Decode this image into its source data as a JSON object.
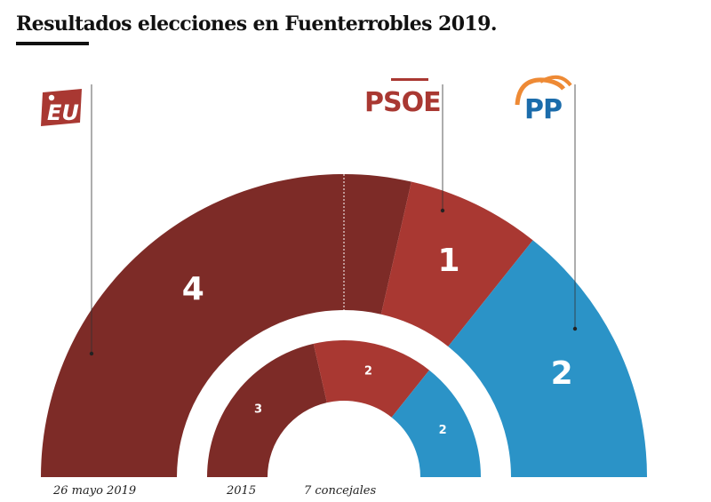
{
  "title": "Resultados elecciones en Fuenterrobles 2019.",
  "parties": [
    {
      "key": "eu",
      "logo_text": "EU",
      "logo_icon": "iu-logo-icon",
      "color": "#7d2b27"
    },
    {
      "key": "psoe",
      "logo_text": "PSOE",
      "logo_icon": "psoe-logo-icon",
      "color": "#a93832"
    },
    {
      "key": "pp",
      "logo_text": "PP",
      "logo_icon": "pp-logo-icon",
      "color": "#2b93c7"
    }
  ],
  "chart_data": {
    "type": "semicircle-parliament",
    "total_seats": 7,
    "rings": [
      {
        "label": "26 mayo 2019",
        "series": [
          {
            "party": "eu",
            "seats": 4
          },
          {
            "party": "psoe",
            "seats": 1
          },
          {
            "party": "pp",
            "seats": 2
          }
        ]
      },
      {
        "label": "2015",
        "series": [
          {
            "party": "eu",
            "seats": 3
          },
          {
            "party": "psoe",
            "seats": 2
          },
          {
            "party": "pp",
            "seats": 2
          }
        ]
      }
    ],
    "annotations": [
      "7 concejales"
    ]
  }
}
